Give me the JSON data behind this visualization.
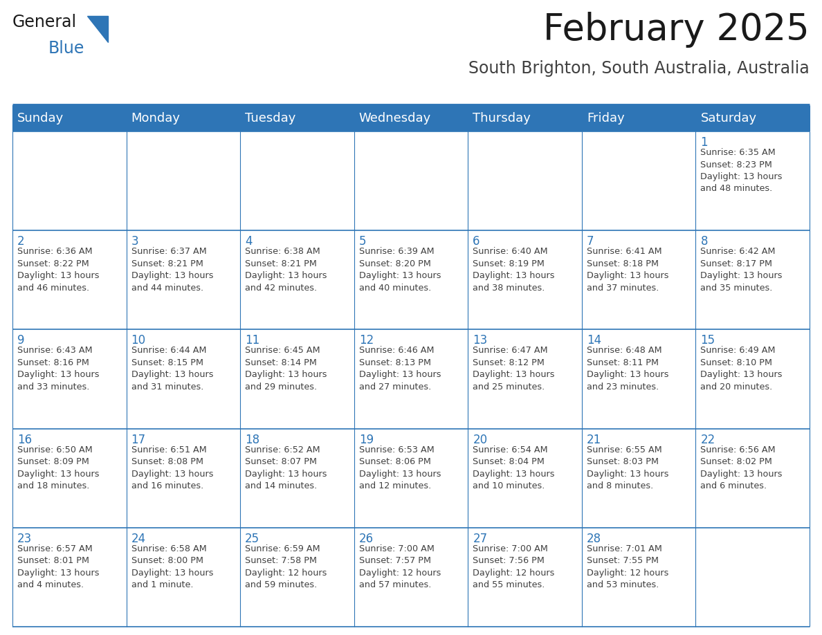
{
  "title": "February 2025",
  "subtitle": "South Brighton, South Australia, Australia",
  "header_bg": "#2E75B6",
  "header_text_color": "#FFFFFF",
  "cell_bg": "#FFFFFF",
  "border_color": "#2E75B6",
  "text_color": "#404040",
  "day_num_color": "#2E75B6",
  "day_headers": [
    "Sunday",
    "Monday",
    "Tuesday",
    "Wednesday",
    "Thursday",
    "Friday",
    "Saturday"
  ],
  "title_fontsize": 38,
  "subtitle_fontsize": 17,
  "header_fontsize": 13,
  "day_num_fontsize": 12,
  "cell_fontsize": 9.2,
  "logo_text1": "General",
  "logo_text2": "Blue",
  "logo_color1": "#1a1a1a",
  "logo_color2": "#2E75B6",
  "weeks": [
    [
      {
        "day": null,
        "text": ""
      },
      {
        "day": null,
        "text": ""
      },
      {
        "day": null,
        "text": ""
      },
      {
        "day": null,
        "text": ""
      },
      {
        "day": null,
        "text": ""
      },
      {
        "day": null,
        "text": ""
      },
      {
        "day": 1,
        "text": "Sunrise: 6:35 AM\nSunset: 8:23 PM\nDaylight: 13 hours\nand 48 minutes."
      }
    ],
    [
      {
        "day": 2,
        "text": "Sunrise: 6:36 AM\nSunset: 8:22 PM\nDaylight: 13 hours\nand 46 minutes."
      },
      {
        "day": 3,
        "text": "Sunrise: 6:37 AM\nSunset: 8:21 PM\nDaylight: 13 hours\nand 44 minutes."
      },
      {
        "day": 4,
        "text": "Sunrise: 6:38 AM\nSunset: 8:21 PM\nDaylight: 13 hours\nand 42 minutes."
      },
      {
        "day": 5,
        "text": "Sunrise: 6:39 AM\nSunset: 8:20 PM\nDaylight: 13 hours\nand 40 minutes."
      },
      {
        "day": 6,
        "text": "Sunrise: 6:40 AM\nSunset: 8:19 PM\nDaylight: 13 hours\nand 38 minutes."
      },
      {
        "day": 7,
        "text": "Sunrise: 6:41 AM\nSunset: 8:18 PM\nDaylight: 13 hours\nand 37 minutes."
      },
      {
        "day": 8,
        "text": "Sunrise: 6:42 AM\nSunset: 8:17 PM\nDaylight: 13 hours\nand 35 minutes."
      }
    ],
    [
      {
        "day": 9,
        "text": "Sunrise: 6:43 AM\nSunset: 8:16 PM\nDaylight: 13 hours\nand 33 minutes."
      },
      {
        "day": 10,
        "text": "Sunrise: 6:44 AM\nSunset: 8:15 PM\nDaylight: 13 hours\nand 31 minutes."
      },
      {
        "day": 11,
        "text": "Sunrise: 6:45 AM\nSunset: 8:14 PM\nDaylight: 13 hours\nand 29 minutes."
      },
      {
        "day": 12,
        "text": "Sunrise: 6:46 AM\nSunset: 8:13 PM\nDaylight: 13 hours\nand 27 minutes."
      },
      {
        "day": 13,
        "text": "Sunrise: 6:47 AM\nSunset: 8:12 PM\nDaylight: 13 hours\nand 25 minutes."
      },
      {
        "day": 14,
        "text": "Sunrise: 6:48 AM\nSunset: 8:11 PM\nDaylight: 13 hours\nand 23 minutes."
      },
      {
        "day": 15,
        "text": "Sunrise: 6:49 AM\nSunset: 8:10 PM\nDaylight: 13 hours\nand 20 minutes."
      }
    ],
    [
      {
        "day": 16,
        "text": "Sunrise: 6:50 AM\nSunset: 8:09 PM\nDaylight: 13 hours\nand 18 minutes."
      },
      {
        "day": 17,
        "text": "Sunrise: 6:51 AM\nSunset: 8:08 PM\nDaylight: 13 hours\nand 16 minutes."
      },
      {
        "day": 18,
        "text": "Sunrise: 6:52 AM\nSunset: 8:07 PM\nDaylight: 13 hours\nand 14 minutes."
      },
      {
        "day": 19,
        "text": "Sunrise: 6:53 AM\nSunset: 8:06 PM\nDaylight: 13 hours\nand 12 minutes."
      },
      {
        "day": 20,
        "text": "Sunrise: 6:54 AM\nSunset: 8:04 PM\nDaylight: 13 hours\nand 10 minutes."
      },
      {
        "day": 21,
        "text": "Sunrise: 6:55 AM\nSunset: 8:03 PM\nDaylight: 13 hours\nand 8 minutes."
      },
      {
        "day": 22,
        "text": "Sunrise: 6:56 AM\nSunset: 8:02 PM\nDaylight: 13 hours\nand 6 minutes."
      }
    ],
    [
      {
        "day": 23,
        "text": "Sunrise: 6:57 AM\nSunset: 8:01 PM\nDaylight: 13 hours\nand 4 minutes."
      },
      {
        "day": 24,
        "text": "Sunrise: 6:58 AM\nSunset: 8:00 PM\nDaylight: 13 hours\nand 1 minute."
      },
      {
        "day": 25,
        "text": "Sunrise: 6:59 AM\nSunset: 7:58 PM\nDaylight: 12 hours\nand 59 minutes."
      },
      {
        "day": 26,
        "text": "Sunrise: 7:00 AM\nSunset: 7:57 PM\nDaylight: 12 hours\nand 57 minutes."
      },
      {
        "day": 27,
        "text": "Sunrise: 7:00 AM\nSunset: 7:56 PM\nDaylight: 12 hours\nand 55 minutes."
      },
      {
        "day": 28,
        "text": "Sunrise: 7:01 AM\nSunset: 7:55 PM\nDaylight: 12 hours\nand 53 minutes."
      },
      {
        "day": null,
        "text": ""
      }
    ]
  ]
}
